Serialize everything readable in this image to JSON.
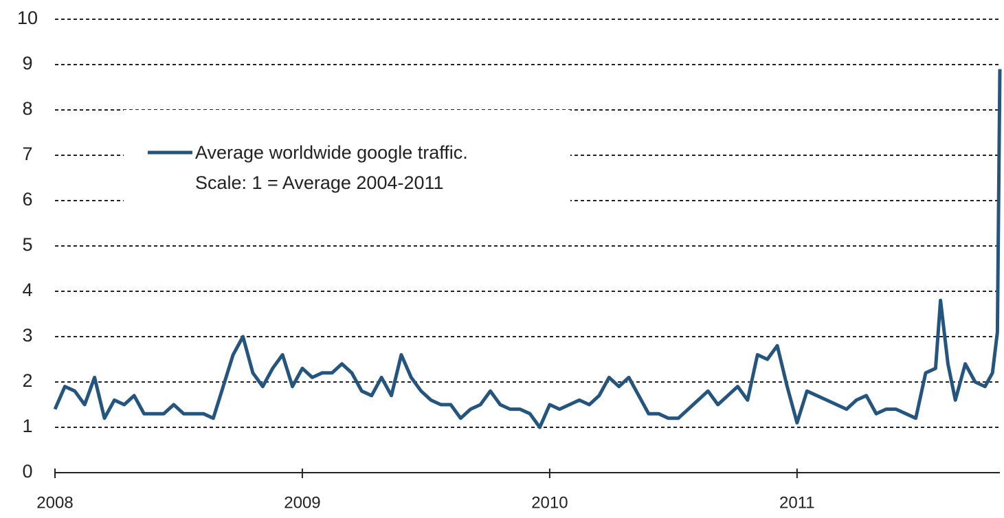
{
  "chart_data": {
    "type": "line",
    "x": [
      2008,
      2008.04,
      2008.08,
      2008.12,
      2008.16,
      2008.2,
      2008.24,
      2008.28,
      2008.32,
      2008.36,
      2008.4,
      2008.44,
      2008.48,
      2008.52,
      2008.56,
      2008.6,
      2008.64,
      2008.68,
      2008.72,
      2008.76,
      2008.8,
      2008.84,
      2008.88,
      2008.92,
      2008.96,
      2009,
      2009.04,
      2009.08,
      2009.12,
      2009.16,
      2009.2,
      2009.24,
      2009.28,
      2009.32,
      2009.36,
      2009.4,
      2009.44,
      2009.48,
      2009.52,
      2009.56,
      2009.6,
      2009.64,
      2009.68,
      2009.72,
      2009.76,
      2009.8,
      2009.84,
      2009.88,
      2009.92,
      2009.96,
      2010,
      2010.04,
      2010.08,
      2010.12,
      2010.16,
      2010.2,
      2010.24,
      2010.28,
      2010.32,
      2010.36,
      2010.4,
      2010.44,
      2010.48,
      2010.52,
      2010.56,
      2010.6,
      2010.64,
      2010.68,
      2010.72,
      2010.76,
      2010.8,
      2010.84,
      2010.88,
      2010.92,
      2010.96,
      2011,
      2011.04,
      2011.08,
      2011.12,
      2011.16,
      2011.2,
      2011.24,
      2011.28,
      2011.32,
      2011.36,
      2011.4,
      2011.44,
      2011.48,
      2011.52,
      2011.56,
      2011.58,
      2011.61,
      2011.64,
      2011.68,
      2011.72,
      2011.76,
      2011.79,
      2011.81,
      2011.82
    ],
    "series": [
      {
        "name": "Average worldwide google traffic.",
        "color": "#24557f",
        "values": [
          1.4,
          1.9,
          1.8,
          1.5,
          2.1,
          1.2,
          1.6,
          1.5,
          1.7,
          1.3,
          1.3,
          1.3,
          1.5,
          1.3,
          1.3,
          1.3,
          1.2,
          1.9,
          2.6,
          3.0,
          2.2,
          1.9,
          2.3,
          2.6,
          1.9,
          2.3,
          2.1,
          2.2,
          2.2,
          2.4,
          2.2,
          1.8,
          1.7,
          2.1,
          1.7,
          2.6,
          2.1,
          1.8,
          1.6,
          1.5,
          1.5,
          1.2,
          1.4,
          1.5,
          1.8,
          1.5,
          1.4,
          1.4,
          1.3,
          1.0,
          1.5,
          1.4,
          1.5,
          1.6,
          1.5,
          1.7,
          2.1,
          1.9,
          2.1,
          1.7,
          1.3,
          1.3,
          1.2,
          1.2,
          1.4,
          1.6,
          1.8,
          1.5,
          1.7,
          1.9,
          1.6,
          2.6,
          2.5,
          2.8,
          1.9,
          1.1,
          1.8,
          1.7,
          1.6,
          1.5,
          1.4,
          1.6,
          1.7,
          1.3,
          1.4,
          1.4,
          1.3,
          1.2,
          2.2,
          2.3,
          3.8,
          2.4,
          1.6,
          2.4,
          2.0,
          1.9,
          2.2,
          3.1,
          8.9
        ]
      }
    ],
    "legend_note": "Scale: 1 = Average 2004-2011",
    "xlim": [
      2008,
      2011.82
    ],
    "xticks": [
      2008,
      2009,
      2010,
      2011
    ],
    "ylim": [
      0,
      10
    ],
    "yticks": [
      0,
      1,
      2,
      3,
      4,
      5,
      6,
      7,
      8,
      9,
      10
    ],
    "grid": true
  }
}
